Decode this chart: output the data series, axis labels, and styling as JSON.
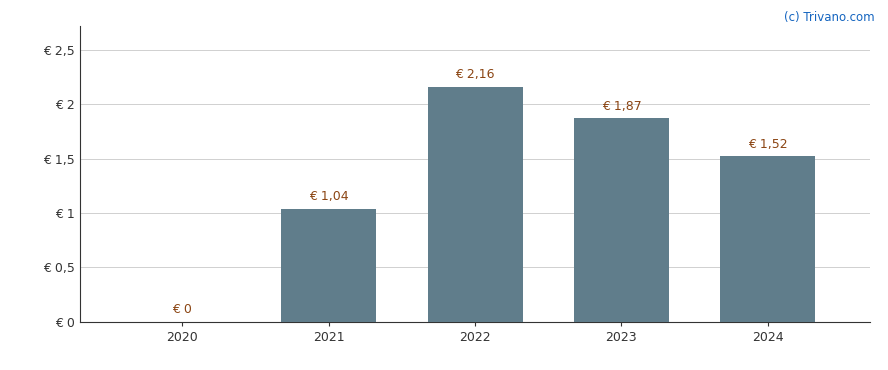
{
  "categories": [
    "2020",
    "2021",
    "2022",
    "2023",
    "2024"
  ],
  "values": [
    0.0,
    1.04,
    2.16,
    1.87,
    1.52
  ],
  "bar_color": "#607D8B",
  "bar_labels": [
    "€ 0",
    "€ 1,04",
    "€ 2,16",
    "€ 1,87",
    "€ 1,52"
  ],
  "bar_label_color": "#8B4513",
  "yticks": [
    0,
    0.5,
    1.0,
    1.5,
    2.0,
    2.5
  ],
  "ytick_labels": [
    "€ 0",
    "€ 0,5",
    "€ 1",
    "€ 1,5",
    "€ 2",
    "€ 2,5"
  ],
  "ylim": [
    0,
    2.72
  ],
  "watermark": "(c) Trivano.com",
  "watermark_color": "#1565C0",
  "background_color": "#ffffff",
  "grid_color": "#d0d0d0",
  "bar_width": 0.65
}
